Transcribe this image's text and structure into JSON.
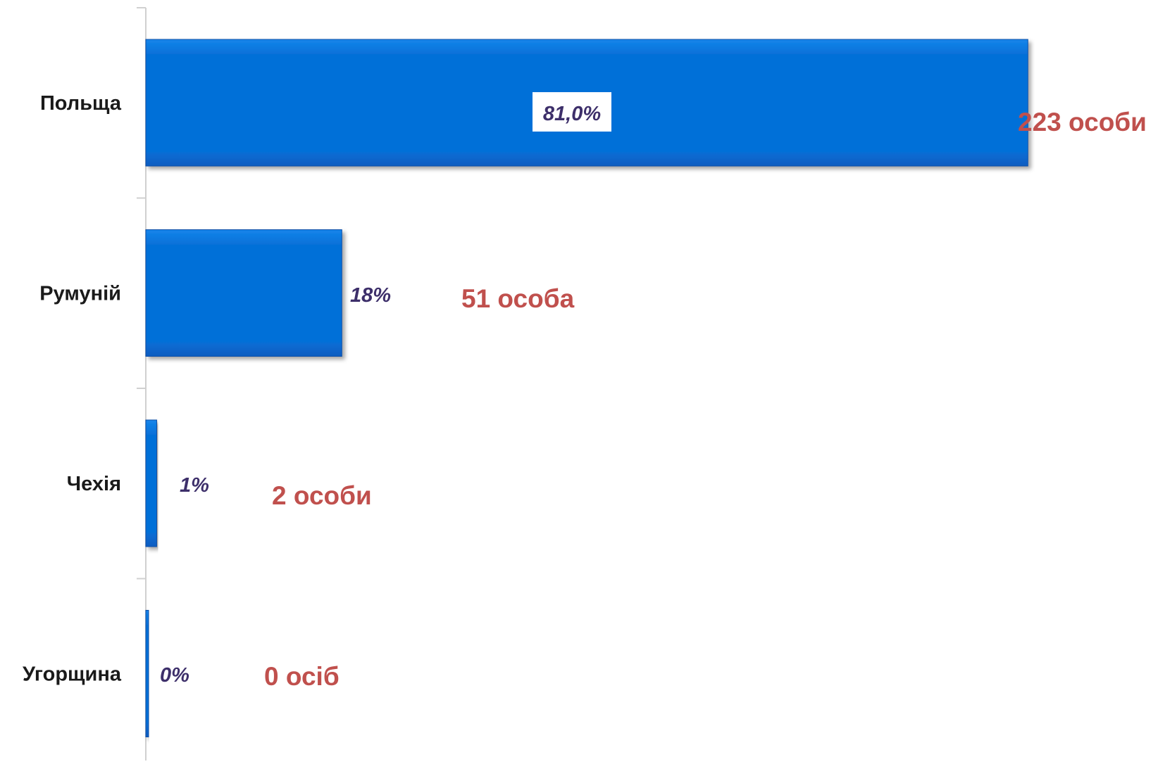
{
  "colors": {
    "bar": "#0670d8",
    "bar_edge": "#0a4fa8",
    "category_text": "#1a1a1a",
    "percent_text": "#3d2f6a",
    "count_text": "#c0504d",
    "axis": "#d0d0d0"
  },
  "chart_data": {
    "type": "bar",
    "orientation": "horizontal",
    "categories": [
      "Польща",
      "Румуній",
      "Чехія",
      "Угорщина"
    ],
    "values": [
      81.0,
      18,
      1,
      0
    ],
    "value_labels": [
      "81,0%",
      "18%",
      "1%",
      "0%"
    ],
    "counts": [
      "223 особи",
      "51 особа",
      "2 особи",
      "0 осіб"
    ],
    "title": "",
    "xlabel": "",
    "ylabel": "",
    "xlim": [
      0,
      100
    ],
    "grid": false,
    "legend": "none"
  }
}
